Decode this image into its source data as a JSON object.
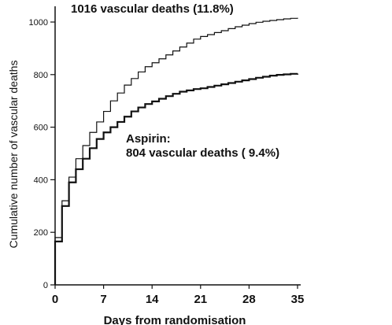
{
  "chart_data": {
    "type": "line",
    "title": "",
    "xlabel": "Days from randomisation",
    "ylabel": "Cumulative number of vascular deaths",
    "xlim": [
      0,
      35
    ],
    "ylim": [
      0,
      1000
    ],
    "xticks": [
      0,
      7,
      14,
      21,
      28,
      35
    ],
    "yticks": [
      0,
      200,
      400,
      600,
      800,
      1000
    ],
    "grid": false,
    "annotations": [
      {
        "text": "1016 vascular deaths (11.8%)"
      },
      {
        "text": "Aspirin:"
      },
      {
        "text": "804 vascular deaths ( 9.4%)"
      }
    ],
    "series": [
      {
        "x": [
          0,
          1,
          2,
          3,
          4,
          5,
          6,
          7,
          8,
          9,
          10,
          11,
          12,
          13,
          14,
          15,
          16,
          17,
          18,
          19,
          20,
          21,
          22,
          23,
          24,
          25,
          26,
          27,
          28,
          29,
          30,
          31,
          32,
          33,
          34,
          35
        ],
        "y": [
          180,
          320,
          410,
          480,
          530,
          580,
          620,
          660,
          700,
          730,
          760,
          785,
          810,
          830,
          845,
          860,
          875,
          890,
          905,
          920,
          935,
          945,
          952,
          960,
          967,
          975,
          982,
          988,
          994,
          999,
          1003,
          1006,
          1009,
          1012,
          1014,
          1016
        ]
      },
      {
        "name": "Aspirin",
        "x": [
          0,
          1,
          2,
          3,
          4,
          5,
          6,
          7,
          8,
          9,
          10,
          11,
          12,
          13,
          14,
          15,
          16,
          17,
          18,
          19,
          20,
          21,
          22,
          23,
          24,
          25,
          26,
          27,
          28,
          29,
          30,
          31,
          32,
          33,
          34,
          35
        ],
        "y": [
          165,
          300,
          390,
          440,
          480,
          520,
          555,
          580,
          600,
          620,
          640,
          660,
          675,
          688,
          698,
          708,
          718,
          727,
          735,
          740,
          745,
          748,
          753,
          758,
          763,
          768,
          773,
          778,
          783,
          788,
          792,
          796,
          799,
          801,
          803,
          804
        ]
      }
    ]
  }
}
